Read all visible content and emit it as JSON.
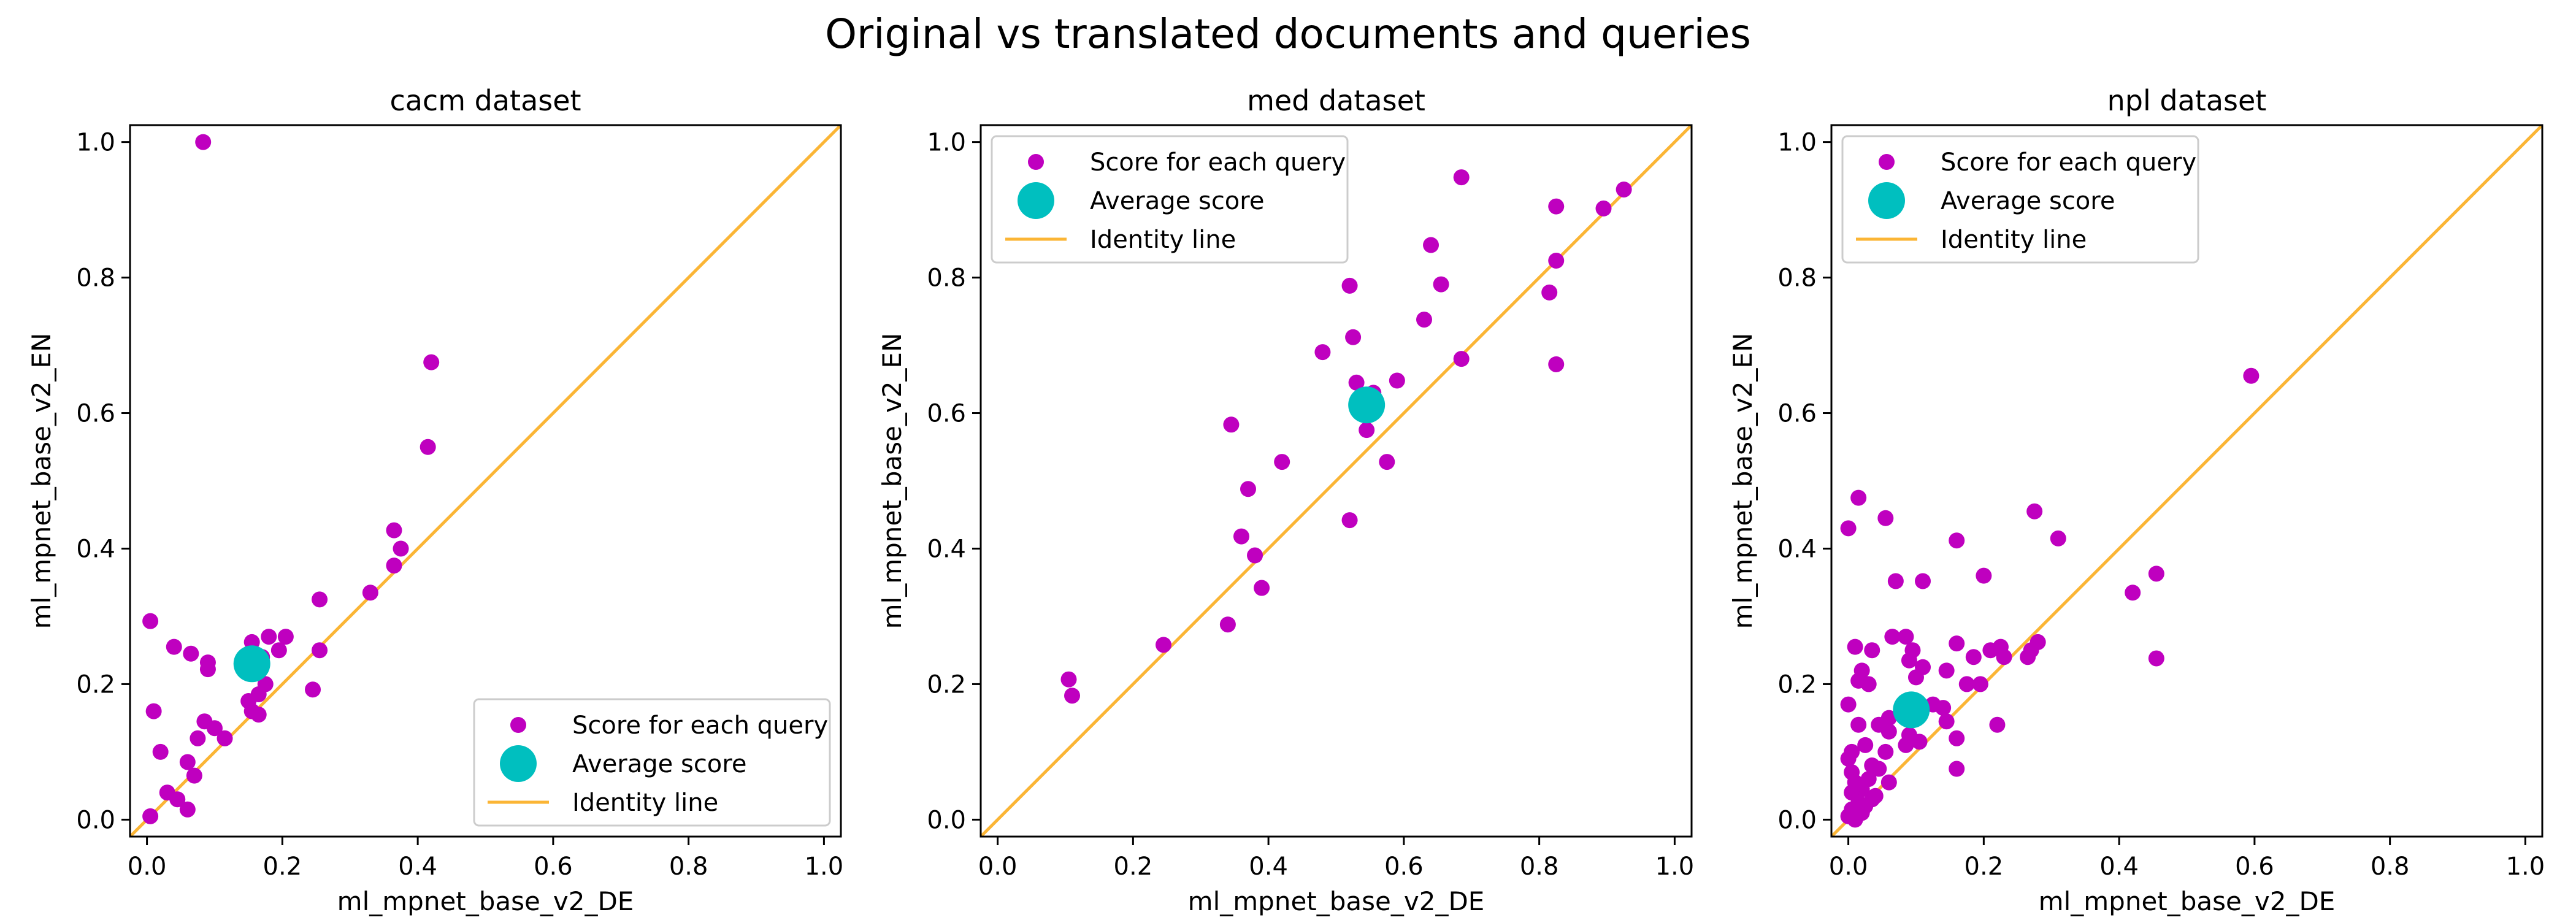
{
  "figure_title": "Original vs translated documents and queries",
  "colors": {
    "points": "#bf00bf",
    "average": "#00bfbf",
    "identity": "#fbb535"
  },
  "legend_labels": {
    "points": "Score for each query",
    "average": "Average score",
    "identity": "Identity line"
  },
  "chart_data": [
    {
      "type": "scatter",
      "title": "cacm dataset",
      "xlabel": "ml_mpnet_base_v2_DE",
      "ylabel": "ml_mpnet_base_v2_EN",
      "xlim": [
        -0.025,
        1.025
      ],
      "ylim": [
        -0.025,
        1.025
      ],
      "xticks": [
        0.0,
        0.2,
        0.4,
        0.6,
        0.8,
        1.0
      ],
      "yticks": [
        0.0,
        0.2,
        0.4,
        0.6,
        0.8,
        1.0
      ],
      "legend_position": "lower right",
      "grid": false,
      "identity_line": true,
      "average": {
        "x": 0.155,
        "y": 0.23
      },
      "points": [
        [
          0.083,
          1.0
        ],
        [
          0.42,
          0.675
        ],
        [
          0.415,
          0.55
        ],
        [
          0.365,
          0.427
        ],
        [
          0.375,
          0.4
        ],
        [
          0.365,
          0.375
        ],
        [
          0.33,
          0.335
        ],
        [
          0.255,
          0.325
        ],
        [
          0.005,
          0.293
        ],
        [
          0.04,
          0.255
        ],
        [
          0.065,
          0.245
        ],
        [
          0.09,
          0.232
        ],
        [
          0.09,
          0.222
        ],
        [
          0.155,
          0.262
        ],
        [
          0.18,
          0.27
        ],
        [
          0.205,
          0.27
        ],
        [
          0.195,
          0.25
        ],
        [
          0.17,
          0.24
        ],
        [
          0.255,
          0.25
        ],
        [
          0.245,
          0.192
        ],
        [
          0.175,
          0.2
        ],
        [
          0.165,
          0.185
        ],
        [
          0.15,
          0.175
        ],
        [
          0.155,
          0.16
        ],
        [
          0.165,
          0.155
        ],
        [
          0.01,
          0.16
        ],
        [
          0.085,
          0.145
        ],
        [
          0.1,
          0.135
        ],
        [
          0.075,
          0.12
        ],
        [
          0.115,
          0.12
        ],
        [
          0.02,
          0.1
        ],
        [
          0.06,
          0.085
        ],
        [
          0.07,
          0.065
        ],
        [
          0.03,
          0.04
        ],
        [
          0.045,
          0.03
        ],
        [
          0.06,
          0.015
        ],
        [
          0.005,
          0.005
        ]
      ]
    },
    {
      "type": "scatter",
      "title": "med dataset",
      "xlabel": "ml_mpnet_base_v2_DE",
      "ylabel": "ml_mpnet_base_v2_EN",
      "xlim": [
        -0.025,
        1.025
      ],
      "ylim": [
        -0.025,
        1.025
      ],
      "xticks": [
        0.0,
        0.2,
        0.4,
        0.6,
        0.8,
        1.0
      ],
      "yticks": [
        0.0,
        0.2,
        0.4,
        0.6,
        0.8,
        1.0
      ],
      "legend_position": "upper left",
      "grid": false,
      "identity_line": true,
      "average": {
        "x": 0.545,
        "y": 0.612
      },
      "points": [
        [
          0.685,
          0.948
        ],
        [
          0.925,
          0.93
        ],
        [
          0.825,
          0.905
        ],
        [
          0.895,
          0.902
        ],
        [
          0.64,
          0.848
        ],
        [
          0.825,
          0.825
        ],
        [
          0.52,
          0.788
        ],
        [
          0.655,
          0.79
        ],
        [
          0.815,
          0.778
        ],
        [
          0.63,
          0.738
        ],
        [
          0.525,
          0.712
        ],
        [
          0.48,
          0.69
        ],
        [
          0.685,
          0.68
        ],
        [
          0.825,
          0.672
        ],
        [
          0.59,
          0.648
        ],
        [
          0.53,
          0.645
        ],
        [
          0.555,
          0.63
        ],
        [
          0.345,
          0.583
        ],
        [
          0.545,
          0.575
        ],
        [
          0.575,
          0.528
        ],
        [
          0.42,
          0.528
        ],
        [
          0.37,
          0.488
        ],
        [
          0.52,
          0.442
        ],
        [
          0.36,
          0.418
        ],
        [
          0.38,
          0.39
        ],
        [
          0.39,
          0.342
        ],
        [
          0.34,
          0.288
        ],
        [
          0.245,
          0.258
        ],
        [
          0.105,
          0.207
        ],
        [
          0.11,
          0.183
        ]
      ]
    },
    {
      "type": "scatter",
      "title": "npl dataset",
      "xlabel": "ml_mpnet_base_v2_DE",
      "ylabel": "ml_mpnet_base_v2_EN",
      "xlim": [
        -0.025,
        1.025
      ],
      "ylim": [
        -0.025,
        1.025
      ],
      "xticks": [
        0.0,
        0.2,
        0.4,
        0.6,
        0.8,
        1.0
      ],
      "yticks": [
        0.0,
        0.2,
        0.4,
        0.6,
        0.8,
        1.0
      ],
      "legend_position": "upper left",
      "grid": false,
      "identity_line": true,
      "average": {
        "x": 0.093,
        "y": 0.162
      },
      "points": [
        [
          0.595,
          0.655
        ],
        [
          0.015,
          0.475
        ],
        [
          0.055,
          0.445
        ],
        [
          0.275,
          0.455
        ],
        [
          0.0,
          0.43
        ],
        [
          0.31,
          0.415
        ],
        [
          0.16,
          0.412
        ],
        [
          0.455,
          0.363
        ],
        [
          0.2,
          0.36
        ],
        [
          0.07,
          0.352
        ],
        [
          0.11,
          0.352
        ],
        [
          0.42,
          0.335
        ],
        [
          0.065,
          0.27
        ],
        [
          0.085,
          0.27
        ],
        [
          0.16,
          0.26
        ],
        [
          0.28,
          0.262
        ],
        [
          0.27,
          0.25
        ],
        [
          0.225,
          0.255
        ],
        [
          0.21,
          0.25
        ],
        [
          0.01,
          0.255
        ],
        [
          0.035,
          0.25
        ],
        [
          0.095,
          0.25
        ],
        [
          0.23,
          0.24
        ],
        [
          0.265,
          0.24
        ],
        [
          0.455,
          0.238
        ],
        [
          0.185,
          0.24
        ],
        [
          0.09,
          0.235
        ],
        [
          0.11,
          0.225
        ],
        [
          0.02,
          0.22
        ],
        [
          0.145,
          0.22
        ],
        [
          0.1,
          0.21
        ],
        [
          0.015,
          0.205
        ],
        [
          0.03,
          0.2
        ],
        [
          0.175,
          0.2
        ],
        [
          0.195,
          0.2
        ],
        [
          0.125,
          0.17
        ],
        [
          0.14,
          0.165
        ],
        [
          0.08,
          0.165
        ],
        [
          0.0,
          0.17
        ],
        [
          0.06,
          0.15
        ],
        [
          0.145,
          0.145
        ],
        [
          0.015,
          0.14
        ],
        [
          0.045,
          0.14
        ],
        [
          0.22,
          0.14
        ],
        [
          0.06,
          0.13
        ],
        [
          0.09,
          0.125
        ],
        [
          0.16,
          0.12
        ],
        [
          0.025,
          0.11
        ],
        [
          0.005,
          0.1
        ],
        [
          0.055,
          0.1
        ],
        [
          0.105,
          0.115
        ],
        [
          0.085,
          0.11
        ],
        [
          0.0,
          0.09
        ],
        [
          0.035,
          0.08
        ],
        [
          0.045,
          0.075
        ],
        [
          0.16,
          0.075
        ],
        [
          0.005,
          0.07
        ],
        [
          0.03,
          0.06
        ],
        [
          0.06,
          0.055
        ],
        [
          0.01,
          0.055
        ],
        [
          0.02,
          0.045
        ],
        [
          0.005,
          0.04
        ],
        [
          0.035,
          0.03
        ],
        [
          0.015,
          0.025
        ],
        [
          0.025,
          0.02
        ],
        [
          0.005,
          0.015
        ],
        [
          0.02,
          0.01
        ],
        [
          0.0,
          0.005
        ],
        [
          0.01,
          0.0
        ],
        [
          0.04,
          0.035
        ]
      ]
    }
  ]
}
